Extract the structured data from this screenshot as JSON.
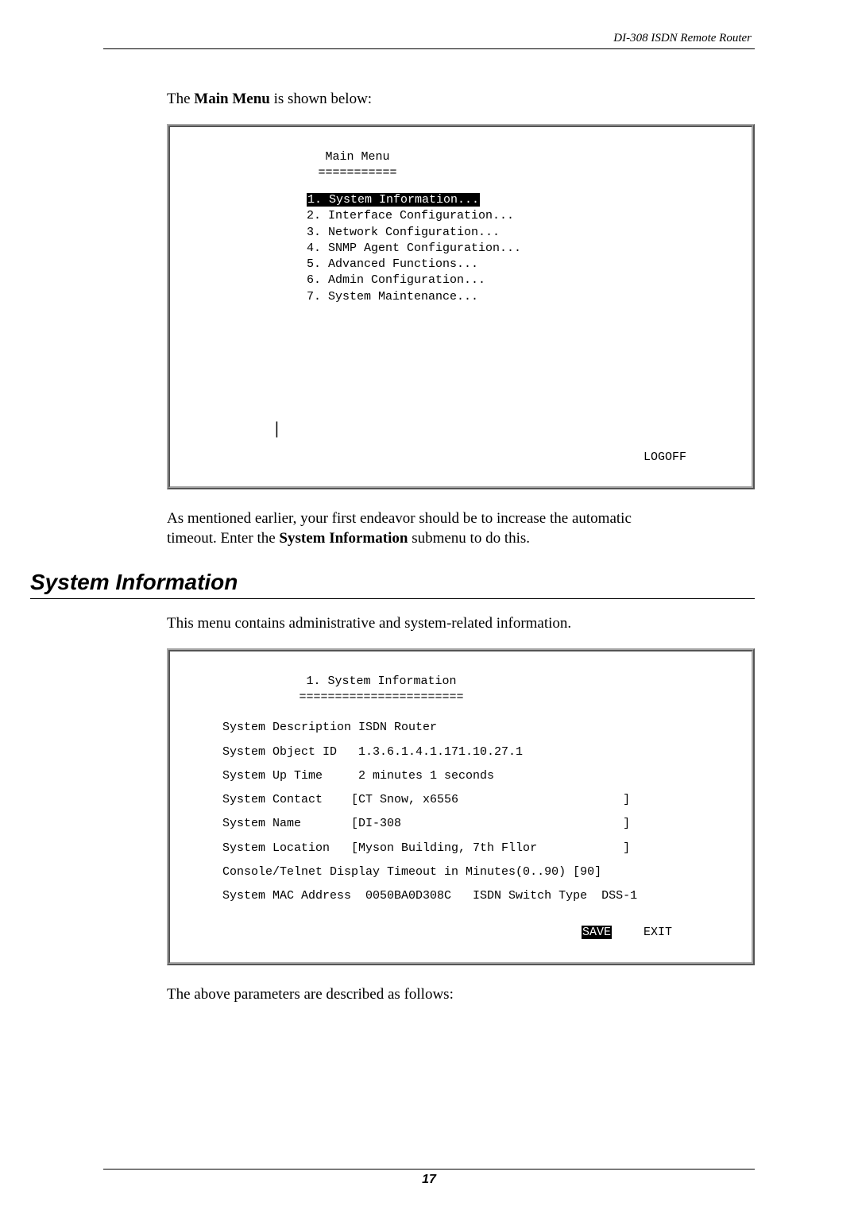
{
  "header": {
    "doc_title": "DI-308 ISDN Remote Router"
  },
  "intro": {
    "prefix": "The ",
    "bold": "Main Menu",
    "suffix": " is shown below:"
  },
  "main_menu_panel": {
    "title": "Main Menu",
    "underline": "===========",
    "items": [
      "1. System Information...",
      "2. Interface Configuration...",
      "3. Network Configuration...",
      "4. SNMP Agent Configuration...",
      "5. Advanced Functions...",
      "6. Admin Configuration...",
      "7. System Maintenance..."
    ],
    "logoff": "LOGOFF"
  },
  "mid_para": {
    "line1": "As mentioned earlier, your first endeavor should be to increase the automatic",
    "line2a": "timeout. Enter the ",
    "line2b": "System Information",
    "line2c": " submenu to do this."
  },
  "section_heading": "System Information",
  "section_intro": "This menu contains administrative and system-related information.",
  "sysinfo_panel": {
    "title": "1. System Information",
    "underline": "=======================",
    "rows": [
      "System Description ISDN Router",
      "System Object ID   1.3.6.1.4.1.171.10.27.1",
      "System Up Time     2 minutes 1 seconds",
      "System Contact    [CT Snow, x6556                       ]",
      "System Name       [DI-308                               ]",
      "System Location   [Myson Building, 7th Fllor            ]",
      "Console/Telnet Display Timeout in Minutes(0..90) [90]",
      "System MAC Address  0050BA0D308C   ISDN Switch Type  DSS-1"
    ],
    "save": "SAVE",
    "exit": "EXIT"
  },
  "closing": "The above parameters are described as follows:",
  "page_number": "17"
}
